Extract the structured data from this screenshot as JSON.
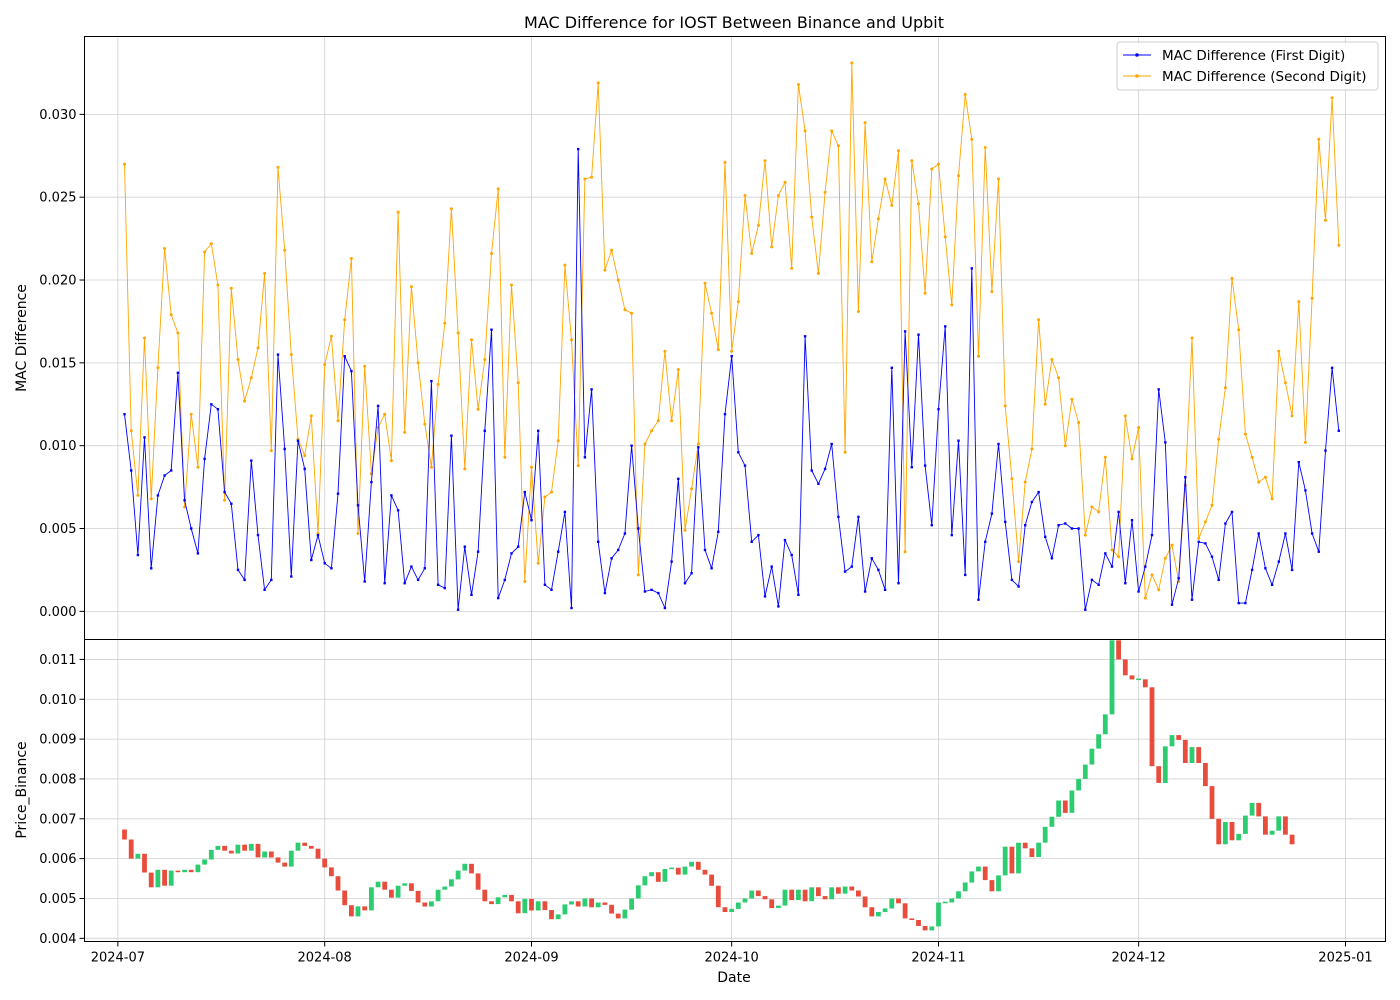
{
  "title": "MAC Difference for IOST Between Binance and Upbit",
  "colors": {
    "first": "#0000ff",
    "second": "#ffa500",
    "up": "#2ecc71",
    "down": "#e74c3c",
    "grid": "#d0d0d0"
  },
  "legend": {
    "placement": "upper right",
    "first_label": "MAC Difference (First Digit)",
    "second_label": "MAC Difference (Second Digit)"
  },
  "chart_data": [
    {
      "type": "line",
      "ylabel": "MAC Difference",
      "ylim": [
        -0.0017,
        0.0347
      ],
      "yticks": [
        "0.000",
        "0.005",
        "0.010",
        "0.015",
        "0.020",
        "0.025",
        "0.030"
      ],
      "grid": true,
      "x_start": "2024-07-02",
      "x_step_days": 1,
      "series": [
        {
          "name": "MAC Difference (First Digit)",
          "values": [
            0.0119,
            0.0085,
            0.0034,
            0.0105,
            0.0026,
            0.007,
            0.0082,
            0.0085,
            0.0144,
            0.0067,
            0.005,
            0.0035,
            0.0092,
            0.0125,
            0.0122,
            0.0072,
            0.0065,
            0.0025,
            0.0019,
            0.0091,
            0.0046,
            0.0013,
            0.0019,
            0.0155,
            0.0098,
            0.0021,
            0.0103,
            0.0086,
            0.0031,
            0.0046,
            0.0029,
            0.0026,
            0.0071,
            0.0154,
            0.0145,
            0.0064,
            0.0018,
            0.0078,
            0.0124,
            0.0017,
            0.007,
            0.0061,
            0.0017,
            0.0027,
            0.0019,
            0.0026,
            0.0139,
            0.0016,
            0.0014,
            0.0106,
            0.0001,
            0.0039,
            0.001,
            0.0036,
            0.0109,
            0.017,
            0.0008,
            0.0019,
            0.0035,
            0.0039,
            0.0072,
            0.0055,
            0.0109,
            0.0016,
            0.0013,
            0.0036,
            0.006,
            0.0002,
            0.0279,
            0.0093,
            0.0134,
            0.0042,
            0.0011,
            0.0032,
            0.0037,
            0.0047,
            0.01,
            0.005,
            0.0012,
            0.0013,
            0.0011,
            0.0002,
            0.003,
            0.008,
            0.0017,
            0.0023,
            0.0099,
            0.0037,
            0.0026,
            0.0048,
            0.0119,
            0.0154,
            0.0096,
            0.0088,
            0.0042,
            0.0046,
            0.0009,
            0.0027,
            0.0003,
            0.0043,
            0.0034,
            0.001,
            0.0166,
            0.0085,
            0.0077,
            0.0086,
            0.0101,
            0.0057,
            0.0024,
            0.0027,
            0.0057,
            0.0012,
            0.0032,
            0.0025,
            0.0013,
            0.0147,
            0.0017,
            0.0169,
            0.0087,
            0.0167,
            0.0088,
            0.0052,
            0.0122,
            0.0172,
            0.0046,
            0.0103,
            0.0022,
            0.0207,
            0.0007,
            0.0042,
            0.0059,
            0.0101,
            0.0054,
            0.0019,
            0.0015,
            0.0052,
            0.0066,
            0.0072,
            0.0045,
            0.0032,
            0.0052,
            0.0053,
            0.005,
            0.005,
            0.0001,
            0.0019,
            0.0016,
            0.0035,
            0.0027,
            0.006,
            0.0017,
            0.0055,
            0.0012,
            0.0027,
            0.0046,
            0.0134,
            0.0102,
            0.0004,
            0.002,
            0.0081,
            0.0007,
            0.0042,
            0.0041,
            0.0033,
            0.0019,
            0.0053,
            0.006,
            0.0005,
            0.0005,
            0.0025,
            0.0047,
            0.0026,
            0.0016,
            0.003,
            0.0047,
            0.0025,
            0.009,
            0.0073,
            0.0047,
            0.0036,
            0.0097,
            0.0147,
            0.0109
          ]
        },
        {
          "name": "MAC Difference (Second Digit)",
          "values": [
            0.027,
            0.0109,
            0.007,
            0.0165,
            0.0068,
            0.0147,
            0.0219,
            0.0179,
            0.0168,
            0.0063,
            0.0119,
            0.0087,
            0.0217,
            0.0222,
            0.0197,
            0.0067,
            0.0195,
            0.0152,
            0.0127,
            0.0141,
            0.0159,
            0.0204,
            0.0097,
            0.0268,
            0.0218,
            0.0155,
            0.0104,
            0.0094,
            0.0118,
            0.0047,
            0.0149,
            0.0166,
            0.0115,
            0.0176,
            0.0213,
            0.0047,
            0.0148,
            0.0083,
            0.0111,
            0.0119,
            0.0091,
            0.0241,
            0.0108,
            0.0196,
            0.015,
            0.0113,
            0.0087,
            0.0137,
            0.0174,
            0.0243,
            0.0168,
            0.0086,
            0.0164,
            0.0122,
            0.0152,
            0.0216,
            0.0255,
            0.0093,
            0.0197,
            0.0138,
            0.0018,
            0.0087,
            0.0029,
            0.0069,
            0.0072,
            0.0103,
            0.0209,
            0.0164,
            0.0088,
            0.0261,
            0.0262,
            0.0319,
            0.0206,
            0.0218,
            0.02,
            0.0182,
            0.018,
            0.0022,
            0.0101,
            0.0109,
            0.0115,
            0.0157,
            0.0115,
            0.0146,
            0.0049,
            0.0074,
            0.0101,
            0.0198,
            0.018,
            0.0158,
            0.0271,
            0.0157,
            0.0187,
            0.0251,
            0.0216,
            0.0233,
            0.0272,
            0.022,
            0.0251,
            0.0259,
            0.0207,
            0.0318,
            0.029,
            0.0238,
            0.0204,
            0.0253,
            0.029,
            0.0281,
            0.0096,
            0.0331,
            0.0181,
            0.0295,
            0.0211,
            0.0237,
            0.0261,
            0.0245,
            0.0278,
            0.0036,
            0.0272,
            0.0246,
            0.0192,
            0.0267,
            0.027,
            0.0226,
            0.0185,
            0.0263,
            0.0312,
            0.0285,
            0.0154,
            0.028,
            0.0193,
            0.0261,
            0.0124,
            0.008,
            0.003,
            0.0078,
            0.0098,
            0.0176,
            0.0125,
            0.0152,
            0.0141,
            0.01,
            0.0128,
            0.0114,
            0.0046,
            0.0063,
            0.006,
            0.0093,
            0.0037,
            0.0033,
            0.0118,
            0.0092,
            0.0111,
            0.0008,
            0.0022,
            0.0013,
            0.0032,
            0.004,
            0.0018,
            0.0076,
            0.0165,
            0.0044,
            0.0054,
            0.0064,
            0.0104,
            0.0135,
            0.0201,
            0.017,
            0.0107,
            0.0093,
            0.0078,
            0.0081,
            0.0068,
            0.0157,
            0.0138,
            0.0118,
            0.0187,
            0.0102,
            0.0189,
            0.0285,
            0.0236,
            0.031,
            0.0221
          ]
        }
      ]
    },
    {
      "type": "candlestick",
      "ylabel": "Price_Binance",
      "xlabel": "Date",
      "ylim": [
        0.00392,
        0.0115
      ],
      "yticks": [
        "0.004",
        "0.005",
        "0.006",
        "0.007",
        "0.008",
        "0.009",
        "0.010",
        "0.011"
      ],
      "xticks": [
        "2024-07",
        "2024-08",
        "2024-09",
        "2024-10",
        "2024-11",
        "2024-12",
        "2025-01"
      ],
      "xlim": [
        "2024-06-26",
        "2025-01-07"
      ],
      "grid": true,
      "x_start": "2024-07-01",
      "x_step_days": 1,
      "closes": [
        0.00673,
        0.00648,
        0.006,
        0.00612,
        0.00565,
        0.00528,
        0.00572,
        0.00532,
        0.0057,
        0.00566,
        0.00572,
        0.00566,
        0.00585,
        0.00598,
        0.00622,
        0.00632,
        0.0062,
        0.00613,
        0.00635,
        0.0062,
        0.00637,
        0.00603,
        0.00618,
        0.00603,
        0.0059,
        0.0058,
        0.0062,
        0.0064,
        0.00632,
        0.00625,
        0.006,
        0.00578,
        0.00556,
        0.0052,
        0.00483,
        0.00455,
        0.0048,
        0.0047,
        0.00528,
        0.00542,
        0.00522,
        0.00502,
        0.00532,
        0.00538,
        0.00519,
        0.0049,
        0.0048,
        0.00493,
        0.00522,
        0.0053,
        0.00548,
        0.0057,
        0.00587,
        0.00563,
        0.00522,
        0.00493,
        0.00486,
        0.00503,
        0.00509,
        0.00493,
        0.00463,
        0.00499,
        0.0047,
        0.00493,
        0.00471,
        0.00448,
        0.0046,
        0.00485,
        0.00493,
        0.0048,
        0.005,
        0.00478,
        0.0049,
        0.00484,
        0.00462,
        0.0045,
        0.00472,
        0.005,
        0.00533,
        0.00556,
        0.00566,
        0.00542,
        0.00574,
        0.00577,
        0.0056,
        0.0058,
        0.00592,
        0.00572,
        0.0056,
        0.00532,
        0.00478,
        0.00466,
        0.00474,
        0.0049,
        0.005,
        0.0052,
        0.00506,
        0.00498,
        0.00476,
        0.00482,
        0.00522,
        0.00496,
        0.00522,
        0.00493,
        0.00528,
        0.00506,
        0.00498,
        0.00528,
        0.00512,
        0.0053,
        0.0052,
        0.00505,
        0.00478,
        0.00455,
        0.00466,
        0.00475,
        0.005,
        0.00488,
        0.0045,
        0.00446,
        0.00431,
        0.0042,
        0.0043,
        0.0049,
        0.0049,
        0.005,
        0.00518,
        0.0054,
        0.00568,
        0.0058,
        0.00546,
        0.00518,
        0.00558,
        0.0063,
        0.00563,
        0.0064,
        0.00626,
        0.00604,
        0.0064,
        0.0068,
        0.00705,
        0.00746,
        0.00715,
        0.00771,
        0.008,
        0.00836,
        0.00876,
        0.00912,
        0.00962,
        0.01148,
        0.011,
        0.0106,
        0.0105,
        0.0105,
        0.0103,
        0.00832,
        0.0079,
        0.00882,
        0.0091,
        0.00898,
        0.0084,
        0.0088,
        0.0084,
        0.00782,
        0.007,
        0.00636,
        0.00692,
        0.00646,
        0.00662,
        0.00708,
        0.0074,
        0.00706,
        0.0066,
        0.0067,
        0.00706,
        0.0066,
        0.00636
      ]
    }
  ]
}
